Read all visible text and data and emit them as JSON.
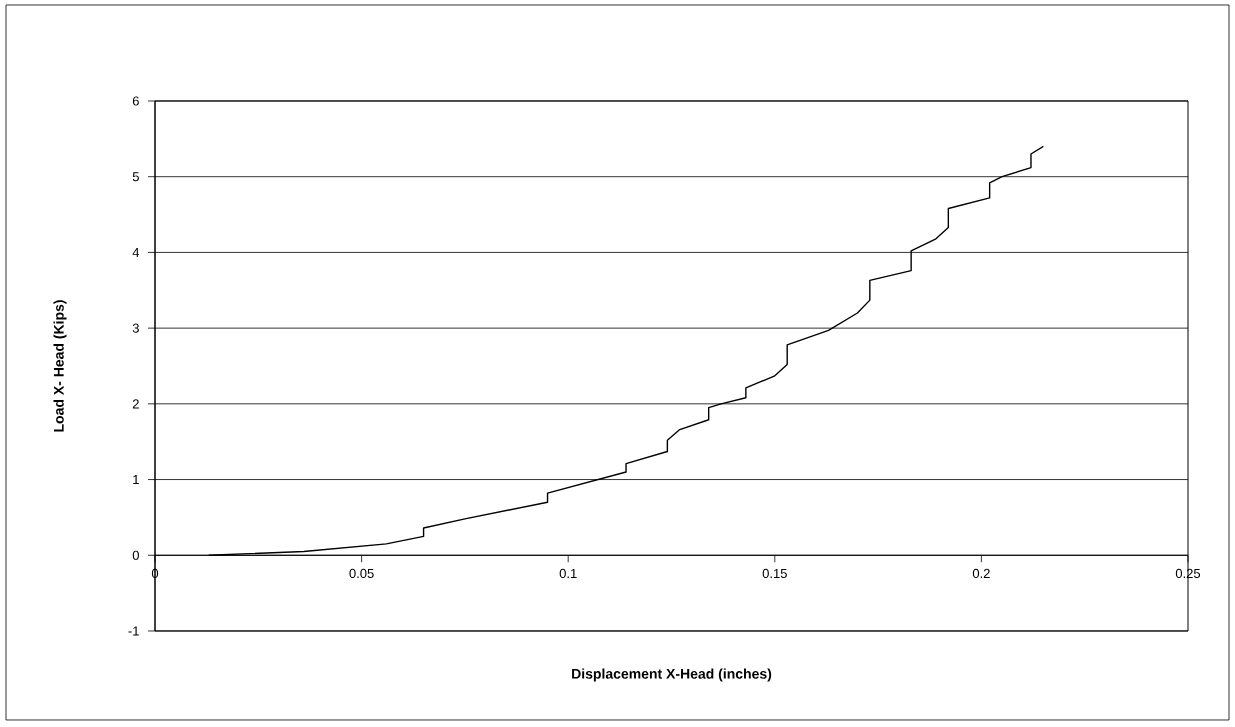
{
  "chart_data": {
    "type": "line",
    "xlabel": "Displacement X-Head (inches)",
    "ylabel": "Load X- Head (Kips)",
    "xlim": [
      0,
      0.25
    ],
    "ylim": [
      -1,
      6
    ],
    "xticks": [
      0,
      0.05,
      0.1,
      0.15,
      0.2,
      0.25
    ],
    "yticks": [
      -1,
      0,
      1,
      2,
      3,
      4,
      5,
      6
    ],
    "grid": "y",
    "series": [
      {
        "color": "#000000",
        "x": [
          0.013,
          0.036,
          0.056,
          0.065,
          0.065,
          0.075,
          0.095,
          0.095,
          0.114,
          0.114,
          0.124,
          0.124,
          0.127,
          0.134,
          0.134,
          0.137,
          0.143,
          0.143,
          0.15,
          0.153,
          0.153,
          0.163,
          0.17,
          0.173,
          0.173,
          0.183,
          0.183,
          0.189,
          0.192,
          0.192,
          0.202,
          0.202,
          0.205,
          0.212,
          0.212,
          0.215
        ],
        "values": [
          0,
          0.05,
          0.15,
          0.25,
          0.36,
          0.48,
          0.7,
          0.82,
          1.1,
          1.21,
          1.37,
          1.52,
          1.66,
          1.79,
          1.95,
          2.0,
          2.08,
          2.21,
          2.37,
          2.52,
          2.78,
          2.97,
          3.2,
          3.37,
          3.63,
          3.76,
          4.02,
          4.18,
          4.33,
          4.58,
          4.72,
          4.92,
          5.0,
          5.12,
          5.3,
          5.4
        ]
      }
    ]
  }
}
